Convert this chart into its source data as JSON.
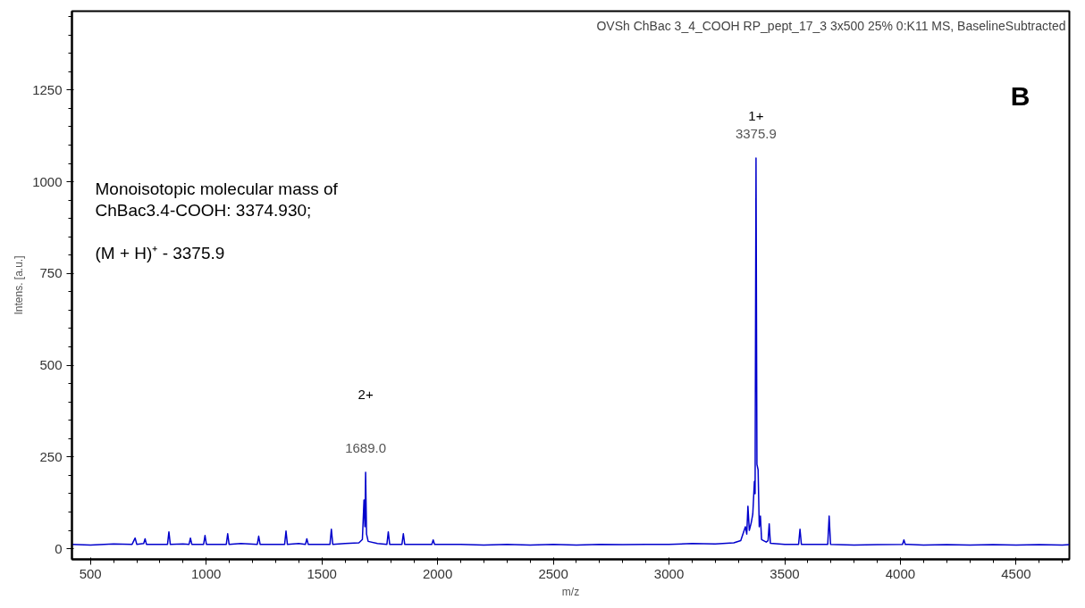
{
  "chart_data": {
    "type": "line",
    "title": "OVSh ChBac 3_4_COOH RP_pept_17_3 3x500 25% 0:K11 MS, BaselineSubtracted",
    "xlabel": "m/z",
    "ylabel": "Intens. [a.u.]",
    "x": [
      420,
      500,
      600,
      680,
      693,
      700,
      730,
      736,
      742,
      800,
      833,
      839,
      845,
      900,
      926,
      932,
      938,
      989,
      995,
      1001,
      1050,
      1087,
      1093,
      1099,
      1150,
      1221,
      1227,
      1233,
      1300,
      1339,
      1345,
      1351,
      1400,
      1429,
      1435,
      1441,
      1500,
      1535,
      1541,
      1547,
      1600,
      1660,
      1675,
      1682,
      1686,
      1689,
      1693,
      1700,
      1740,
      1781,
      1787,
      1793,
      1846,
      1852,
      1858,
      1975,
      1981,
      1987,
      2100,
      2200,
      2300,
      2400,
      2500,
      2600,
      2700,
      2800,
      2900,
      3000,
      3100,
      3200,
      3280,
      3310,
      3330,
      3336,
      3341,
      3347,
      3355,
      3362,
      3369,
      3372,
      3376,
      3380,
      3385,
      3390,
      3395,
      3400,
      3420,
      3428,
      3433,
      3438,
      3500,
      3560,
      3566,
      3572,
      3650,
      3686,
      3692,
      3698,
      3800,
      3900,
      4009,
      4015,
      4021,
      4100,
      4200,
      4300,
      4400,
      4500,
      4600,
      4700,
      4730
    ],
    "series": [
      {
        "color": "#0000cc",
        "values": [
          12,
          10,
          13,
          12,
          29,
          12,
          14,
          27,
          12,
          12,
          12,
          46,
          12,
          13,
          12,
          29,
          12,
          12,
          36,
          12,
          12,
          12,
          41,
          12,
          14,
          12,
          34,
          12,
          12,
          12,
          48,
          12,
          14,
          12,
          27,
          12,
          12,
          12,
          53,
          12,
          14,
          16,
          25,
          133,
          60,
          208,
          40,
          20,
          14,
          12,
          46,
          12,
          12,
          41,
          12,
          12,
          24,
          12,
          12,
          10,
          12,
          10,
          12,
          10,
          12,
          11,
          12,
          12,
          14,
          13,
          16,
          22,
          60,
          40,
          116,
          50,
          70,
          94,
          183,
          150,
          1065,
          230,
          215,
          60,
          89,
          25,
          18,
          22,
          68,
          15,
          12,
          12,
          53,
          12,
          12,
          12,
          89,
          12,
          10,
          11,
          12,
          24,
          12,
          10,
          11,
          10,
          11,
          10,
          11,
          10,
          11
        ]
      }
    ],
    "xlim": [
      420,
      4730
    ],
    "ylim": [
      -29,
      1465
    ],
    "xticks": [
      500,
      1000,
      1500,
      2000,
      2500,
      3000,
      3500,
      4000,
      4500
    ],
    "yticks": [
      0,
      250,
      500,
      750,
      1000,
      1250
    ],
    "annotations": [
      "B",
      "Monoisotopic molecular mass of",
      "ChBac3.4-COOH: 3374.930;",
      "(M + H)⁺ - 3375.9",
      "1+",
      "2+",
      {
        "text": "3375.9",
        "x": 3375.9,
        "y": 1065
      },
      {
        "text": "1689.0",
        "x": 1689.0,
        "y": 208
      }
    ],
    "grid": false,
    "marker": "none",
    "line_style": "solid"
  }
}
